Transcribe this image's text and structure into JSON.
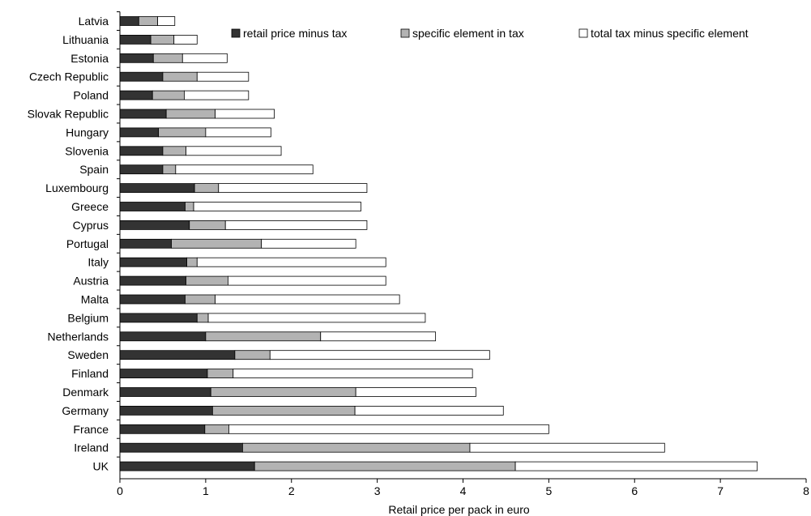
{
  "chart_data": {
    "type": "bar",
    "orientation": "horizontal",
    "stacked": true,
    "title": "",
    "xlabel": "Retail price per pack in euro",
    "ylabel": "",
    "xlim": [
      0,
      8
    ],
    "xticks": [
      0,
      1,
      2,
      3,
      4,
      5,
      6,
      7,
      8
    ],
    "grid": false,
    "legend_position": "top-right",
    "categories": [
      "Latvia",
      "Lithuania",
      "Estonia",
      "Czech Republic",
      "Poland",
      "Slovak Republic",
      "Hungary",
      "Slovenia",
      "Spain",
      "Luxembourg",
      "Greece",
      "Cyprus",
      "Portugal",
      "Italy",
      "Austria",
      "Malta",
      "Belgium",
      "Netherlands",
      "Sweden",
      "Finland",
      "Denmark",
      "Germany",
      "France",
      "Ireland",
      "UK"
    ],
    "series": [
      {
        "name": "retail price minus tax",
        "color": "#333333",
        "values": [
          0.22,
          0.36,
          0.39,
          0.5,
          0.38,
          0.54,
          0.45,
          0.5,
          0.5,
          0.87,
          0.76,
          0.81,
          0.6,
          0.78,
          0.77,
          0.76,
          0.9,
          1.0,
          1.34,
          1.02,
          1.06,
          1.08,
          0.99,
          1.43,
          1.57
        ]
      },
      {
        "name": "specific element in tax",
        "color": "#b3b3b3",
        "values": [
          0.22,
          0.27,
          0.34,
          0.4,
          0.37,
          0.57,
          0.55,
          0.27,
          0.15,
          0.28,
          0.1,
          0.42,
          1.05,
          0.12,
          0.49,
          0.35,
          0.13,
          1.34,
          0.41,
          0.3,
          1.69,
          1.66,
          0.28,
          2.65,
          3.04
        ]
      },
      {
        "name": "total tax minus specific element",
        "color": "#ffffff",
        "values": [
          0.2,
          0.27,
          0.52,
          0.6,
          0.75,
          0.69,
          0.76,
          1.11,
          1.6,
          1.73,
          1.95,
          1.65,
          1.1,
          2.2,
          1.84,
          2.15,
          2.53,
          1.34,
          2.56,
          2.79,
          1.4,
          1.73,
          3.73,
          2.27,
          2.82
        ]
      }
    ]
  }
}
